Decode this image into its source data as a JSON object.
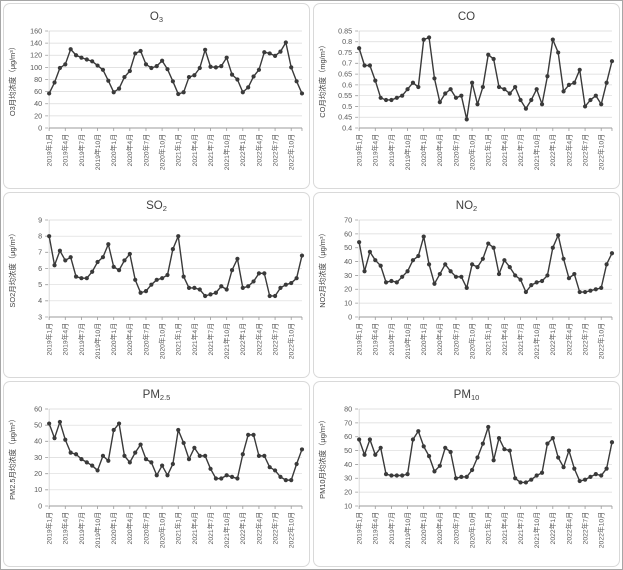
{
  "style": {
    "series_color": "#3a3a3a",
    "grid_color": "#d9d9d9",
    "axis_color": "#9b9b9b",
    "value_axis_color": "#c9c9c9",
    "tick_text_color": "#595959",
    "title_text_color": "#404040",
    "background": "#ffffff",
    "panel_border": "#d9d9d9",
    "outer_border": "#a6a6a6"
  },
  "chart_data": {
    "type": "line",
    "layout": "2x3-grid",
    "grid": "horizontal-gridlines-on",
    "legend": "none",
    "marker": "filled-circle",
    "points_per_series": 48,
    "x_range_note": "monthly Jan 2019 - Dec 2022, labels every 3 months, rotated 90deg",
    "x_labels": [
      "2019年1月",
      "2019年4月",
      "2019年7月",
      "2019年10月",
      "2020年1月",
      "2020年4月",
      "2020年7月",
      "2020年10月",
      "2021年1月",
      "2021年4月",
      "2021年7月",
      "2021年10月",
      "2022年1月",
      "2022年4月",
      "2022年7月",
      "2022年10月"
    ],
    "charts": [
      {
        "id": "o3",
        "title_main": "O",
        "title_sub": "3",
        "ylabel": "O3月均浓度（μg/m³）",
        "ylim": [
          0,
          160
        ],
        "ystep": 20,
        "y_ticks": [
          "0",
          "20",
          "40",
          "60",
          "80",
          "100",
          "120",
          "140",
          "160"
        ],
        "values": [
          57,
          75,
          99,
          105,
          130,
          120,
          116,
          113,
          110,
          103,
          96,
          78,
          59,
          65,
          84,
          94,
          123,
          127,
          105,
          99,
          102,
          111,
          97,
          77,
          56,
          59,
          84,
          87,
          99,
          129,
          101,
          100,
          102,
          116,
          88,
          80,
          59,
          67,
          85,
          96,
          125,
          123,
          119,
          126,
          141,
          100,
          77,
          57
        ]
      },
      {
        "id": "co",
        "title_main": "CO",
        "title_sub": "",
        "ylabel": "CO月均浓度（mg/m³）",
        "ylim": [
          0.4,
          0.85
        ],
        "ystep": 0.05,
        "y_ticks": [
          "0.4",
          "0.45",
          "0.5",
          "0.55",
          "0.6",
          "0.65",
          "0.7",
          "0.75",
          "0.8",
          "0.85"
        ],
        "values": [
          0.77,
          0.69,
          0.69,
          0.62,
          0.54,
          0.53,
          0.53,
          0.54,
          0.55,
          0.58,
          0.61,
          0.59,
          0.81,
          0.82,
          0.63,
          0.52,
          0.56,
          0.58,
          0.54,
          0.55,
          0.44,
          0.61,
          0.51,
          0.59,
          0.74,
          0.72,
          0.59,
          0.58,
          0.56,
          0.59,
          0.53,
          0.49,
          0.53,
          0.58,
          0.51,
          0.64,
          0.81,
          0.75,
          0.57,
          0.6,
          0.61,
          0.67,
          0.5,
          0.53,
          0.55,
          0.51,
          0.61,
          0.71
        ]
      },
      {
        "id": "so2",
        "title_main": "SO",
        "title_sub": "2",
        "ylabel": "SO2月均浓度（μg/m³）",
        "ylim": [
          3,
          9
        ],
        "ystep": 1,
        "y_ticks": [
          "3",
          "4",
          "5",
          "6",
          "7",
          "8",
          "9"
        ],
        "values": [
          8.0,
          6.2,
          7.1,
          6.5,
          6.7,
          5.5,
          5.4,
          5.4,
          5.8,
          6.4,
          6.7,
          7.5,
          6.1,
          5.9,
          6.5,
          6.9,
          5.3,
          4.5,
          4.6,
          5.0,
          5.3,
          5.4,
          5.6,
          7.2,
          8.0,
          5.5,
          4.8,
          4.8,
          4.7,
          4.3,
          4.4,
          4.5,
          4.9,
          4.7,
          5.9,
          6.6,
          4.8,
          4.9,
          5.2,
          5.7,
          5.7,
          4.3,
          4.3,
          4.8,
          5.0,
          5.1,
          5.4,
          6.8
        ]
      },
      {
        "id": "no2",
        "title_main": "NO",
        "title_sub": "2",
        "ylabel": "NO2月均浓度（μg/m³）",
        "ylim": [
          0,
          70
        ],
        "ystep": 10,
        "y_ticks": [
          "0",
          "10",
          "20",
          "30",
          "40",
          "50",
          "60",
          "70"
        ],
        "values": [
          54,
          33,
          47,
          41,
          37,
          25,
          26,
          25,
          29,
          33,
          41,
          44,
          58,
          38,
          24,
          31,
          38,
          33,
          29,
          29,
          21,
          38,
          36,
          42,
          53,
          50,
          31,
          41,
          36,
          30,
          27,
          18,
          23,
          25,
          26,
          30,
          50,
          59,
          42,
          28,
          31,
          18,
          18,
          19,
          20,
          21,
          38,
          46
        ]
      },
      {
        "id": "pm25",
        "title_main": "PM",
        "title_sub": "2.5",
        "ylabel": "PM2.5月均浓度（μg/m³）",
        "ylim": [
          0,
          60
        ],
        "ystep": 10,
        "y_ticks": [
          "0",
          "10",
          "20",
          "30",
          "40",
          "50",
          "60"
        ],
        "values": [
          51,
          42,
          52,
          41,
          33,
          32,
          29,
          27,
          25,
          22,
          31,
          28,
          47,
          51,
          31,
          27,
          33,
          38,
          29,
          27,
          19,
          25,
          19,
          26,
          47,
          39,
          29,
          36,
          31,
          31,
          23,
          17,
          17,
          19,
          18,
          17,
          32,
          44,
          44,
          31,
          31,
          24,
          22,
          18,
          16,
          16,
          26,
          35
        ]
      },
      {
        "id": "pm10",
        "title_main": "PM",
        "title_sub": "10",
        "ylabel": "PM10月均浓度（μg/m³）",
        "ylim": [
          10,
          80
        ],
        "ystep": 10,
        "y_ticks": [
          "10",
          "20",
          "30",
          "40",
          "50",
          "60",
          "70",
          "80"
        ],
        "values": [
          58,
          47,
          58,
          47,
          52,
          33,
          32,
          32,
          32,
          33,
          58,
          64,
          53,
          46,
          35,
          39,
          52,
          49,
          30,
          31,
          31,
          36,
          45,
          55,
          67,
          43,
          59,
          51,
          50,
          30,
          27,
          27,
          29,
          32,
          34,
          55,
          59,
          45,
          38,
          50,
          37,
          28,
          29,
          31,
          33,
          32,
          37,
          56
        ]
      }
    ]
  }
}
